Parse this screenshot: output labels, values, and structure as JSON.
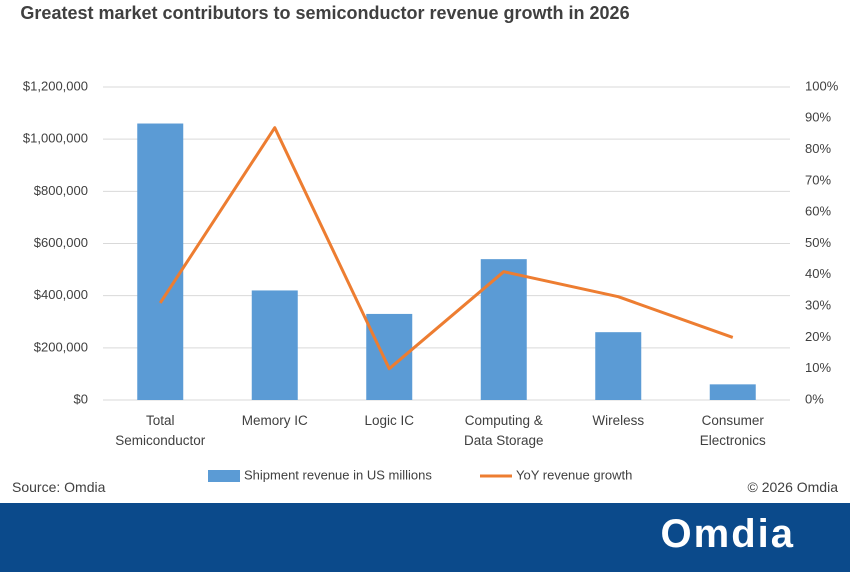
{
  "chart_data": {
    "type": "bar_line",
    "title": "Greatest market contributors to semiconductor revenue growth in 2026",
    "categories": [
      "Total Semiconductor",
      "Memory IC",
      "Logic IC",
      "Computing & Data Storage",
      "Wireless",
      "Consumer Electronics"
    ],
    "series": [
      {
        "name": "Shipment revenue in US millions",
        "type": "bar",
        "color": "#5b9bd5",
        "axis": "y",
        "values": [
          1060000,
          420000,
          330000,
          540000,
          260000,
          60000
        ]
      },
      {
        "name": "YoY revenue growth",
        "type": "line",
        "color": "#ed7d31",
        "axis": "y2",
        "values": [
          31,
          87,
          10,
          41,
          33,
          20
        ]
      }
    ],
    "ylim": [
      0,
      1200000
    ],
    "yticks": [
      {
        "value": 0,
        "label": "$0"
      },
      {
        "value": 200000,
        "label": "$200,000"
      },
      {
        "value": 400000,
        "label": "$400,000"
      },
      {
        "value": 600000,
        "label": "$600,000"
      },
      {
        "value": 800000,
        "label": "$800,000"
      },
      {
        "value": 1000000,
        "label": "$1,000,000"
      },
      {
        "value": 1200000,
        "label": "$1,200,000"
      }
    ],
    "y2lim": [
      0,
      100
    ],
    "y2ticks": [
      {
        "value": 0,
        "label": "0%"
      },
      {
        "value": 10,
        "label": "10%"
      },
      {
        "value": 20,
        "label": "20%"
      },
      {
        "value": 30,
        "label": "30%"
      },
      {
        "value": 40,
        "label": "40%"
      },
      {
        "value": 50,
        "label": "50%"
      },
      {
        "value": 60,
        "label": "60%"
      },
      {
        "value": 70,
        "label": "70%"
      },
      {
        "value": 80,
        "label": "80%"
      },
      {
        "value": 90,
        "label": "90%"
      },
      {
        "value": 100,
        "label": "100%"
      }
    ],
    "grid": true,
    "legend": "bottom"
  },
  "footer": {
    "source": "Source: Omdia",
    "copyright": "© 2026 Omdia",
    "brand": "Omdia"
  }
}
